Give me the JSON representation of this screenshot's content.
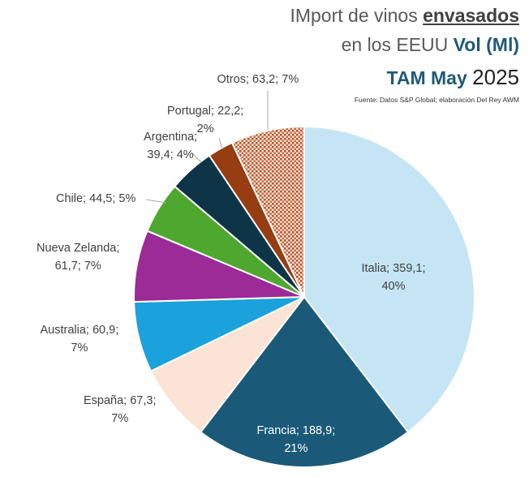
{
  "title": {
    "line1_prefix": "IMport de vinos ",
    "line1_emph": "envasados",
    "line2_prefix": "en los EEUU ",
    "line2_emph": "Vol (Ml)",
    "line3_emph": "TAM May",
    "line3_year": "2025"
  },
  "source": "Fuente: Datos S&P Global; elaboración Del Rey AWM",
  "chart_data": {
    "type": "pie",
    "start_angle_deg": 0,
    "direction": "clockwise",
    "slices": [
      {
        "name": "Italia",
        "value": 359.1,
        "percent": 40,
        "color": "#c5e5f5",
        "pattern": false,
        "label_lines": [
          "Italia; 359,1;",
          "40%"
        ],
        "label_color": "#404040"
      },
      {
        "name": "Francia",
        "value": 188.9,
        "percent": 21,
        "color": "#1a5a78",
        "pattern": false,
        "label_lines": [
          "Francia; 188,9;",
          "21%"
        ],
        "label_color": "#ffffff"
      },
      {
        "name": "España",
        "value": 67.3,
        "percent": 7,
        "color": "#fbe4d5",
        "pattern": false,
        "label_lines": [
          "España; 67,3;",
          "7%"
        ],
        "label_color": "#404040"
      },
      {
        "name": "Australia",
        "value": 60.9,
        "percent": 7,
        "color": "#1ba1dc",
        "pattern": false,
        "label_lines": [
          "Australia; 60,9;",
          "7%"
        ],
        "label_color": "#404040"
      },
      {
        "name": "Nueva Zelanda",
        "value": 61.7,
        "percent": 7,
        "color": "#9c2a97",
        "pattern": false,
        "label_lines": [
          "Nueva Zelanda;",
          "61,7; 7%"
        ],
        "label_color": "#404040"
      },
      {
        "name": "Chile",
        "value": 44.5,
        "percent": 5,
        "color": "#4ea72e",
        "pattern": false,
        "label_lines": [
          "Chile; 44,5; 5%"
        ],
        "label_color": "#404040"
      },
      {
        "name": "Argentina",
        "value": 39.4,
        "percent": 4,
        "color": "#0e3547",
        "pattern": false,
        "label_lines": [
          "Argentina;",
          "39,4; 4%"
        ],
        "label_color": "#404040"
      },
      {
        "name": "Portugal",
        "value": 22.2,
        "percent": 2,
        "color": "#963d12",
        "pattern": false,
        "label_lines": [
          "Portugal; 22,2;",
          "2%"
        ],
        "label_color": "#404040"
      },
      {
        "name": "Otros",
        "value": 63.2,
        "percent": 7,
        "color": "#e8c4a8",
        "pattern": true,
        "label_lines": [
          "Otros; 63,2; 7%"
        ],
        "label_color": "#404040"
      }
    ]
  }
}
